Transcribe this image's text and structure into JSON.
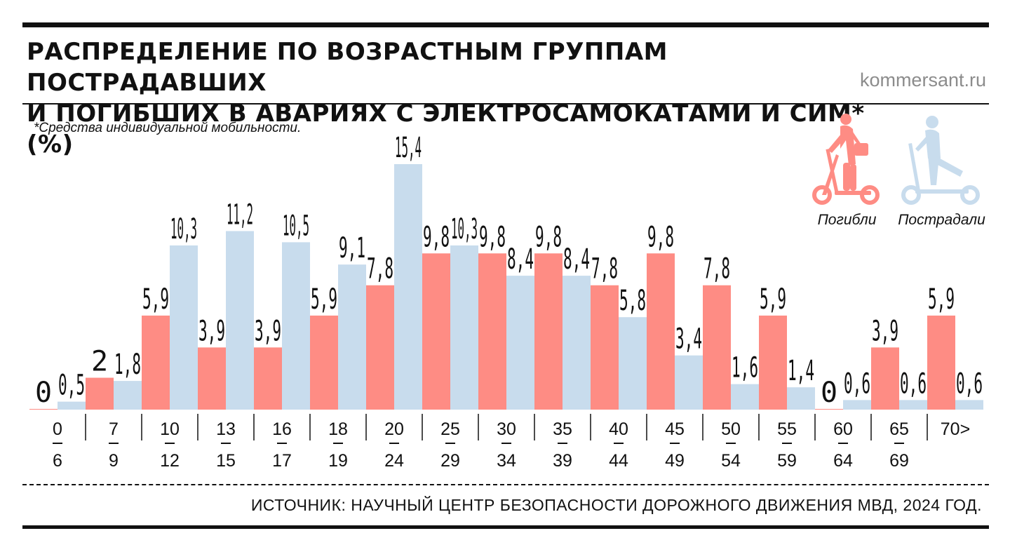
{
  "header": {
    "title_line1": "РАСПРЕДЕЛЕНИЕ ПО ВОЗРАСТНЫМ ГРУППАМ ПОСТРАДАВШИХ",
    "title_line2": "И ПОГИБШИХ В АВАРИЯХ С ЭЛЕКТРОСАМОКАТАМИ И СИМ* (%)",
    "brand": "kommersant.ru",
    "footnote": "*Средства индивидуальной мобильности."
  },
  "legend": {
    "killed_label": "Погибли",
    "injured_label": "Пострадали",
    "killed_icon": "scooter-rider-icon",
    "injured_icon": "scooter-rider-icon"
  },
  "colors": {
    "killed": "#fe8c84",
    "injured": "#c8dced",
    "text": "#111111",
    "brand": "#8c8c8c"
  },
  "source": "ИСТОЧНИК: НАУЧНЫЙ ЦЕНТР БЕЗОПАСНОСТИ ДОРОЖНОГО ДВИЖЕНИЯ МВД, 2024 ГОД.",
  "chart_data": {
    "type": "bar",
    "title": "РАСПРЕДЕЛЕНИЕ ПО ВОЗРАСТНЫМ ГРУППАМ ПОСТРАДАВШИХ И ПОГИБШИХ В АВАРИЯХ С ЭЛЕКТРОСАМОКАТАМИ И СИМ* (%)",
    "categories": [
      {
        "from": "0",
        "to": "6"
      },
      {
        "from": "7",
        "to": "9"
      },
      {
        "from": "10",
        "to": "12"
      },
      {
        "from": "13",
        "to": "15"
      },
      {
        "from": "16",
        "to": "17"
      },
      {
        "from": "18",
        "to": "19"
      },
      {
        "from": "20",
        "to": "24"
      },
      {
        "from": "25",
        "to": "29"
      },
      {
        "from": "30",
        "to": "34"
      },
      {
        "from": "35",
        "to": "39"
      },
      {
        "from": "40",
        "to": "44"
      },
      {
        "from": "45",
        "to": "49"
      },
      {
        "from": "50",
        "to": "54"
      },
      {
        "from": "55",
        "to": "59"
      },
      {
        "from": "60",
        "to": "64"
      },
      {
        "from": "65",
        "to": "69"
      },
      {
        "from": "70>",
        "to": ""
      }
    ],
    "series": [
      {
        "name": "Погибли",
        "values": [
          0,
          2,
          5.9,
          3.9,
          3.9,
          5.9,
          7.8,
          9.8,
          9.8,
          9.8,
          7.8,
          9.8,
          7.8,
          5.9,
          0,
          3.9,
          5.9
        ],
        "labels": [
          "0",
          "2",
          "5,9",
          "3,9",
          "3,9",
          "5,9",
          "7,8",
          "9,8",
          "9,8",
          "9,8",
          "7,8",
          "9,8",
          "7,8",
          "5,9",
          "0",
          "3,9",
          "5,9"
        ]
      },
      {
        "name": "Пострадали",
        "values": [
          0.5,
          1.8,
          10.3,
          11.2,
          10.5,
          9.1,
          15.4,
          10.3,
          8.4,
          8.4,
          5.8,
          3.4,
          1.6,
          1.4,
          0.6,
          0.6,
          0.6
        ],
        "labels": [
          "0,5",
          "1,8",
          "10,3",
          "11,2",
          "10,5",
          "9,1",
          "15,4",
          "10,3",
          "8,4",
          "8,4",
          "5,8",
          "3,4",
          "1,6",
          "1,4",
          "0,6",
          "0,6",
          "0,6"
        ]
      }
    ],
    "ylim": [
      0,
      15.4
    ],
    "grid": false,
    "legend_position": "top-right"
  }
}
